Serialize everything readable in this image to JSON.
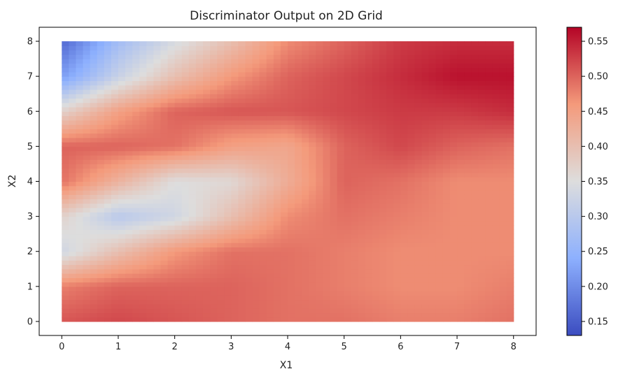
{
  "chart_data": {
    "type": "heatmap",
    "title": "Discriminator Output on 2D Grid",
    "xlabel": "X1",
    "ylabel": "X2",
    "xlim": [
      -0.4,
      8.4
    ],
    "ylim": [
      -0.4,
      8.4
    ],
    "x_range": [
      0,
      8
    ],
    "y_range": [
      0,
      8
    ],
    "x_ticks": [
      "0",
      "1",
      "2",
      "3",
      "4",
      "5",
      "6",
      "7",
      "8"
    ],
    "y_ticks": [
      "0",
      "1",
      "2",
      "3",
      "4",
      "5",
      "6",
      "7",
      "8"
    ],
    "colormap": "coolwarm",
    "colorbar": {
      "vmin": 0.13,
      "vmax": 0.57,
      "ticks": [
        "0.15",
        "0.20",
        "0.25",
        "0.30",
        "0.35",
        "0.40",
        "0.45",
        "0.50",
        "0.55"
      ]
    },
    "approx_values": {
      "x": [
        0,
        1,
        2,
        3,
        4,
        5,
        6,
        7,
        8
      ],
      "y": [
        0,
        1,
        2,
        3,
        4,
        5,
        6,
        7,
        8
      ],
      "z": [
        [
          0.51,
          0.52,
          0.51,
          0.5,
          0.49,
          0.49,
          0.48,
          0.48,
          0.49
        ],
        [
          0.48,
          0.5,
          0.5,
          0.5,
          0.49,
          0.48,
          0.47,
          0.47,
          0.48
        ],
        [
          0.33,
          0.4,
          0.46,
          0.49,
          0.49,
          0.48,
          0.47,
          0.47,
          0.47
        ],
        [
          0.37,
          0.3,
          0.33,
          0.4,
          0.47,
          0.49,
          0.48,
          0.47,
          0.47
        ],
        [
          0.49,
          0.42,
          0.35,
          0.36,
          0.43,
          0.5,
          0.49,
          0.47,
          0.47
        ],
        [
          0.5,
          0.5,
          0.49,
          0.45,
          0.44,
          0.5,
          0.52,
          0.5,
          0.49
        ],
        [
          0.37,
          0.45,
          0.5,
          0.51,
          0.51,
          0.52,
          0.53,
          0.53,
          0.54
        ],
        [
          0.22,
          0.32,
          0.4,
          0.46,
          0.5,
          0.52,
          0.54,
          0.56,
          0.56
        ],
        [
          0.16,
          0.27,
          0.34,
          0.4,
          0.47,
          0.5,
          0.53,
          0.54,
          0.54
        ]
      ]
    },
    "grid": false,
    "legend": "none"
  }
}
